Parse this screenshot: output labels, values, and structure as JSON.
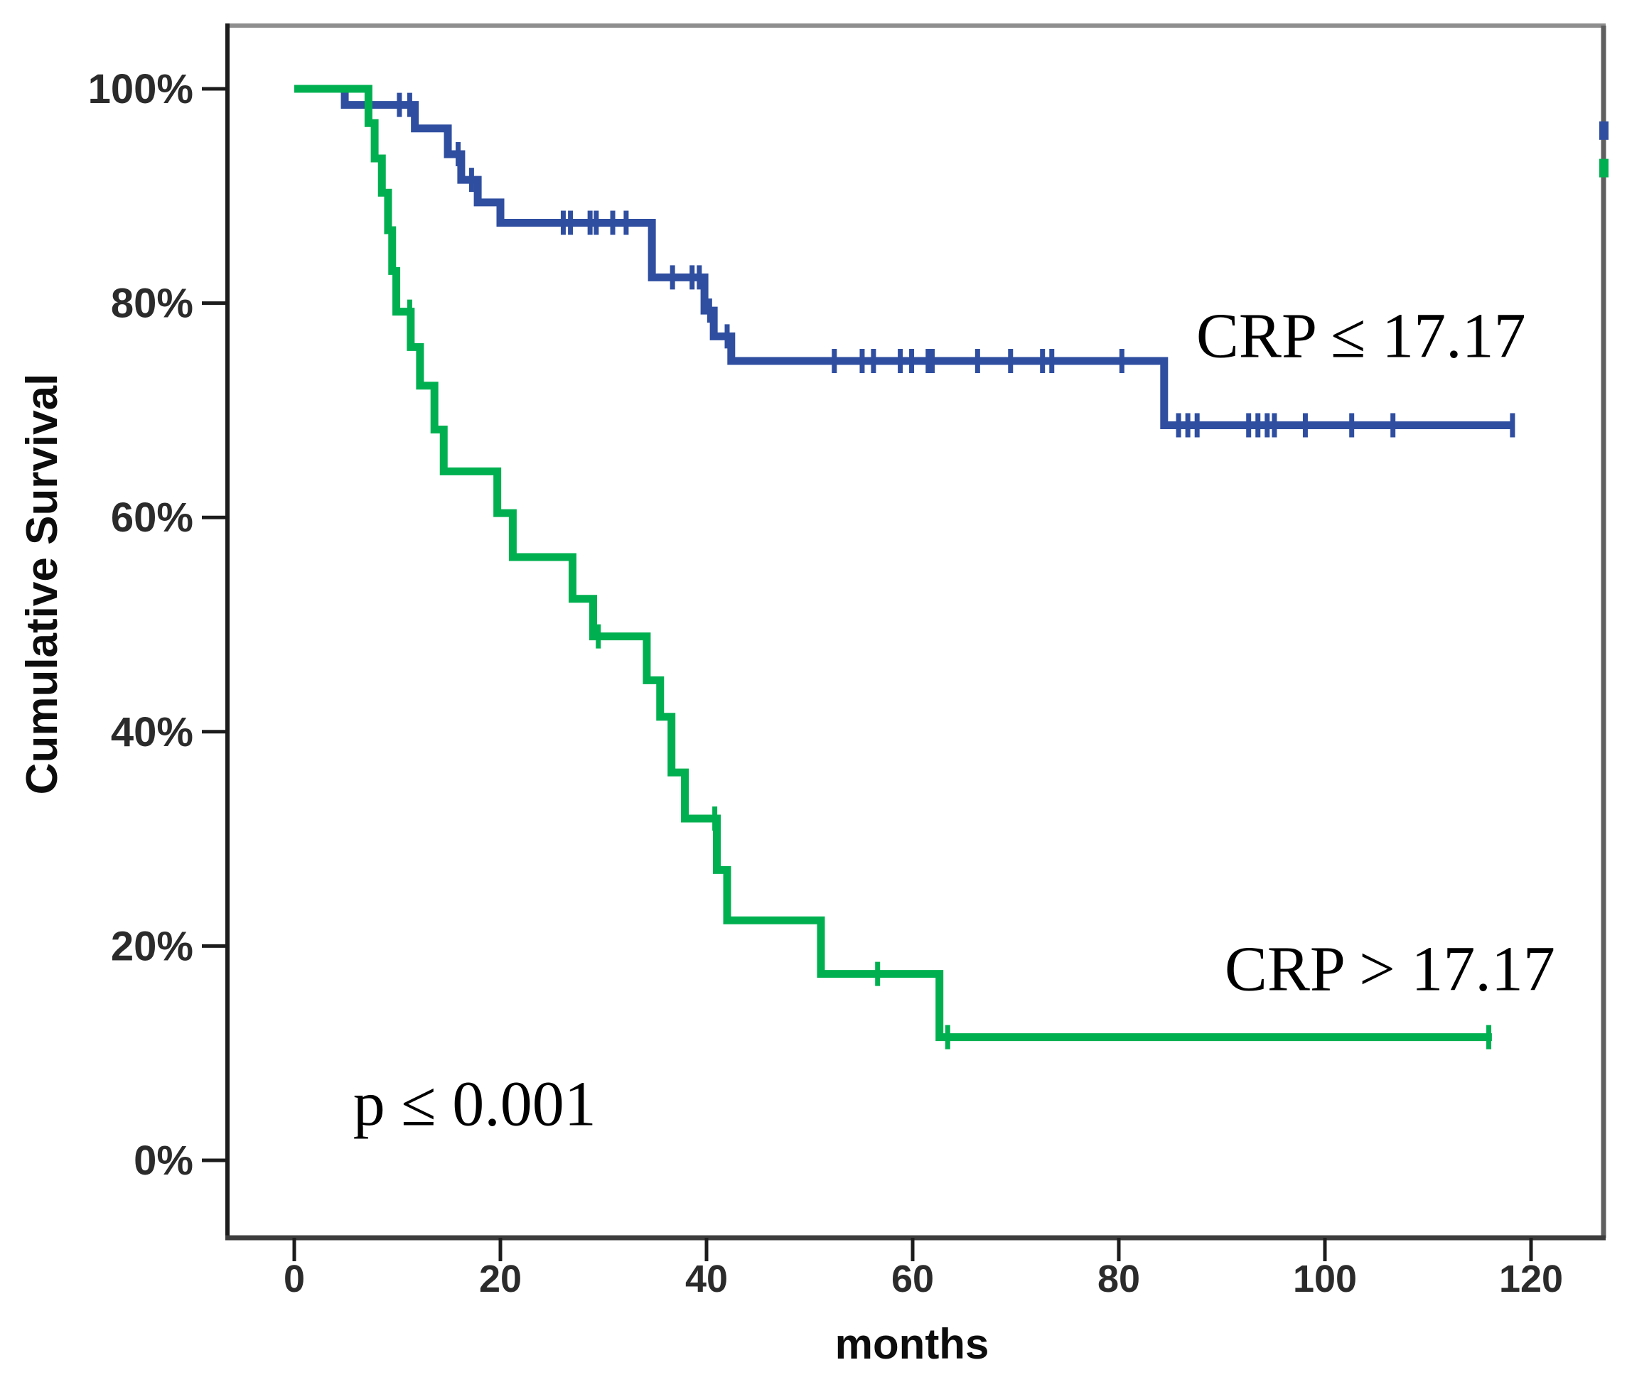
{
  "chart_data": {
    "type": "line",
    "variant": "kaplan-meier-step",
    "title": "",
    "xlabel": "months",
    "ylabel": "Cumulative Survival",
    "x_ticks": [
      0,
      20,
      40,
      60,
      80,
      100,
      120
    ],
    "y_tick_values": [
      0,
      20,
      40,
      60,
      80,
      100
    ],
    "y_tick_labels": [
      "0%",
      "20%",
      "40%",
      "60%",
      "80%",
      "100%"
    ],
    "x_axis_range_months": [
      -6.5,
      127
    ],
    "y_axis_range_pct": [
      -7.2,
      107
    ],
    "grid": false,
    "legend_position": "inline-annotations",
    "p_value": "p ≤ 0.001",
    "series": [
      {
        "name": "CRP ≤ 17.17",
        "color": "#2F4EA0",
        "steps": [
          [
            0,
            100
          ],
          [
            4.9,
            98.5
          ],
          [
            11.7,
            96.3
          ],
          [
            14.9,
            93.9
          ],
          [
            16.2,
            91.5
          ],
          [
            17.8,
            89.4
          ],
          [
            20.0,
            87.5
          ],
          [
            34.7,
            82.4
          ],
          [
            39.8,
            79.3
          ],
          [
            40.7,
            76.9
          ],
          [
            42.4,
            74.6
          ],
          [
            84.4,
            68.6
          ]
        ],
        "end_month": 118.4,
        "censor_marks": [
          [
            10.2,
            98.5
          ],
          [
            11.2,
            98.5
          ],
          [
            15.9,
            93.9
          ],
          [
            17.2,
            91.5
          ],
          [
            26.1,
            87.5
          ],
          [
            26.8,
            87.5
          ],
          [
            28.7,
            87.5
          ],
          [
            29.3,
            87.5
          ],
          [
            30.9,
            87.5
          ],
          [
            32.2,
            87.5
          ],
          [
            36.7,
            82.4
          ],
          [
            38.6,
            82.4
          ],
          [
            39.3,
            82.4
          ],
          [
            40.3,
            79.3
          ],
          [
            42.0,
            76.9
          ],
          [
            52.4,
            74.6
          ],
          [
            55.1,
            74.6
          ],
          [
            56.2,
            74.6
          ],
          [
            58.8,
            74.6
          ],
          [
            59.9,
            74.6
          ],
          [
            61.5,
            74.6
          ],
          [
            61.9,
            74.6
          ],
          [
            66.3,
            74.6
          ],
          [
            69.5,
            74.6
          ],
          [
            72.6,
            74.6
          ],
          [
            73.5,
            74.6
          ],
          [
            80.3,
            74.6
          ],
          [
            85.8,
            68.6
          ],
          [
            86.7,
            68.6
          ],
          [
            87.6,
            68.6
          ],
          [
            92.6,
            68.6
          ],
          [
            93.5,
            68.6
          ],
          [
            94.4,
            68.6
          ],
          [
            95.1,
            68.6
          ],
          [
            98.1,
            68.6
          ],
          [
            102.6,
            68.6
          ],
          [
            106.6,
            68.6
          ],
          [
            118.2,
            68.6
          ]
        ]
      },
      {
        "name": "CRP > 17.17",
        "color": "#00B050",
        "steps": [
          [
            0,
            100
          ],
          [
            7.2,
            96.8
          ],
          [
            7.8,
            93.5
          ],
          [
            8.5,
            90.3
          ],
          [
            9.1,
            86.8
          ],
          [
            9.5,
            83.0
          ],
          [
            9.9,
            79.2
          ],
          [
            11.3,
            75.9
          ],
          [
            12.2,
            72.3
          ],
          [
            13.6,
            68.2
          ],
          [
            14.5,
            64.3
          ],
          [
            19.7,
            60.4
          ],
          [
            21.2,
            56.3
          ],
          [
            27.0,
            52.4
          ],
          [
            29.0,
            48.9
          ],
          [
            34.2,
            44.8
          ],
          [
            35.5,
            41.4
          ],
          [
            36.6,
            36.2
          ],
          [
            37.9,
            31.9
          ],
          [
            41.0,
            27.1
          ],
          [
            42.0,
            22.4
          ],
          [
            51.1,
            17.4
          ],
          [
            62.6,
            11.5
          ]
        ],
        "end_month": 116.2,
        "censor_marks": [
          [
            11.2,
            79.2
          ],
          [
            29.5,
            48.9
          ],
          [
            40.8,
            31.9
          ],
          [
            56.6,
            17.4
          ],
          [
            63.4,
            11.5
          ],
          [
            115.9,
            11.5
          ]
        ]
      }
    ],
    "annotations": [
      {
        "id": "label-crp-low",
        "text": "CRP ≤ 17.17",
        "month": 103.5,
        "pct": 77.1
      },
      {
        "id": "label-crp-high",
        "text": "CRP > 17.17",
        "month": 106.3,
        "pct": 18.0
      },
      {
        "id": "label-p-value",
        "text": "p ≤ 0.001",
        "month": 17.5,
        "pct": 5.4
      }
    ],
    "edge_artifacts": [
      {
        "color": "#2F4EA0",
        "pct": 96.1
      },
      {
        "color": "#00B050",
        "pct": 92.6
      }
    ]
  }
}
